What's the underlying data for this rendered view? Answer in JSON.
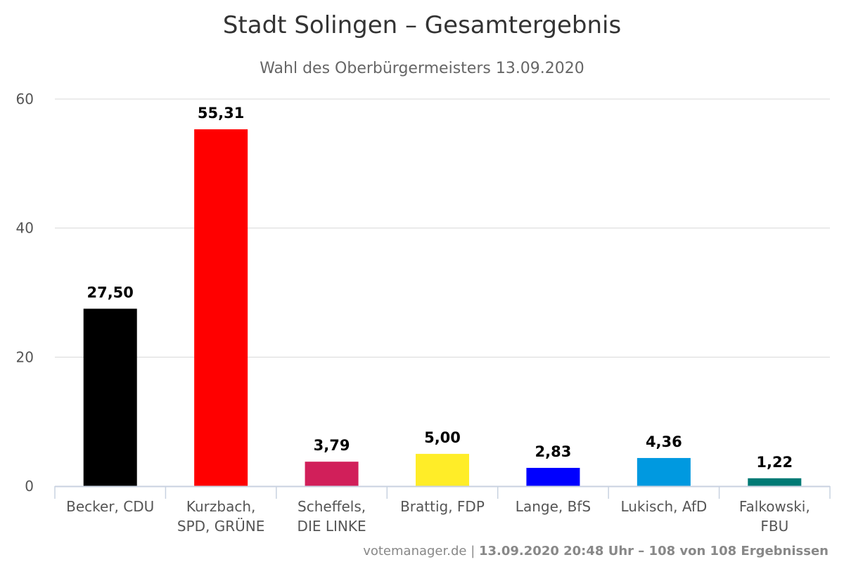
{
  "chart_data": {
    "type": "bar",
    "title": "Stadt Solingen – Gesamtergebnis",
    "subtitle": "Wahl des Oberbürgermeisters 13.09.2020",
    "xlabel": "",
    "ylabel": "",
    "ylim": [
      0,
      60
    ],
    "yticks": [
      "0",
      "20",
      "40",
      "60"
    ],
    "grid": true,
    "categories": [
      [
        "Becker, CDU"
      ],
      [
        "Kurzbach,",
        "SPD, GRÜNE"
      ],
      [
        "Scheffels,",
        "DIE LINKE"
      ],
      [
        "Brattig, FDP"
      ],
      [
        "Lange, BfS"
      ],
      [
        "Lukisch, AfD"
      ],
      [
        "Falkowski,",
        "FBU"
      ]
    ],
    "values": [
      27.5,
      55.31,
      3.79,
      5.0,
      2.83,
      4.36,
      1.22
    ],
    "value_labels": [
      "27,50",
      "55,31",
      "3,79",
      "5,00",
      "2,83",
      "4,36",
      "1,22"
    ],
    "colors": [
      "#000000",
      "#ff0000",
      "#d11f5a",
      "#ffed28",
      "#0000ff",
      "#0099e0",
      "#007a75"
    ]
  },
  "footer": {
    "source": "votemanager.de",
    "separator": " | ",
    "info": "13.09.2020 20:48 Uhr – 108 von 108 Ergebnissen"
  }
}
